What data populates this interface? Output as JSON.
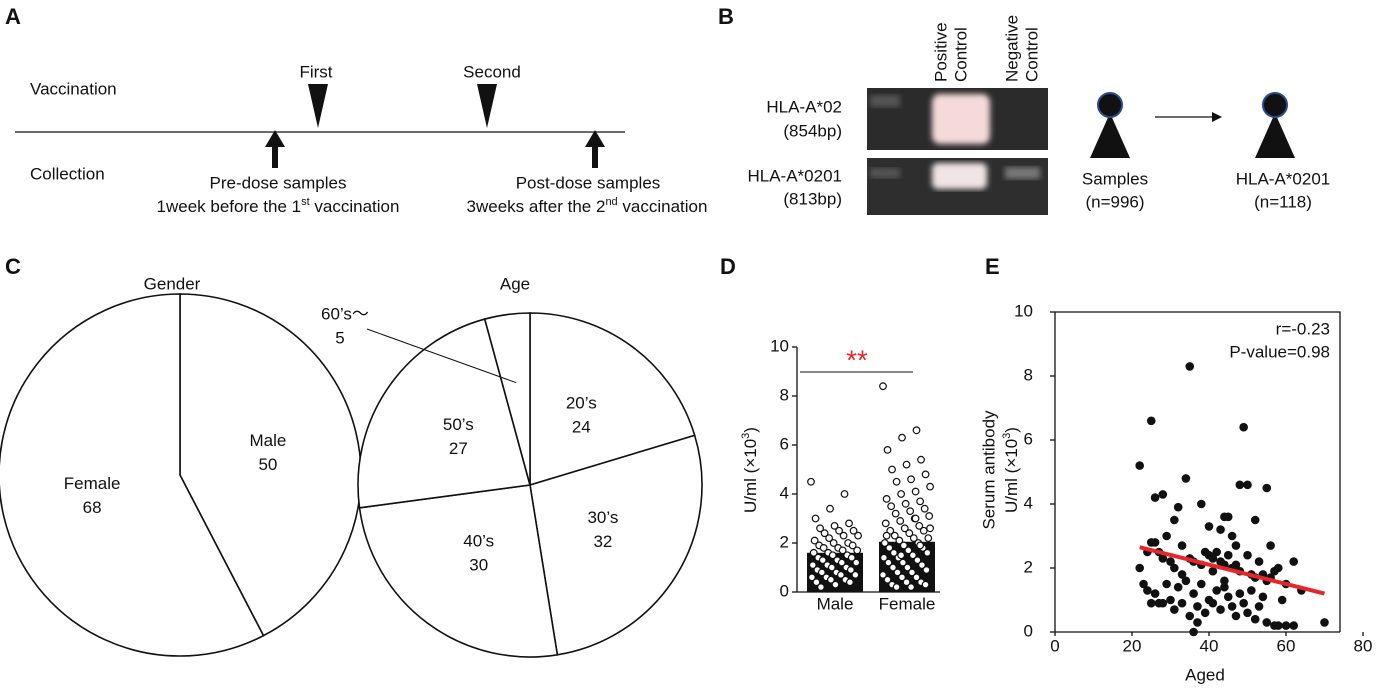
{
  "panel_a": {
    "label": "A",
    "rows": [
      "Vaccination",
      "Collection"
    ],
    "doses": [
      "First",
      "Second"
    ],
    "samples": [
      {
        "title": "Pre-dose samples",
        "note": [
          "1week before the 1",
          "st",
          " vaccination"
        ]
      },
      {
        "title": "Post-dose samples",
        "note": [
          "3weeks after the 2",
          "nd",
          " vaccination"
        ]
      }
    ]
  },
  "panel_b": {
    "label": "B",
    "lanes": [
      [
        "Positive",
        "Control"
      ],
      [
        "Negative",
        "Control"
      ]
    ],
    "genes": [
      {
        "name": "HLA-A*02",
        "size": "(854bp)"
      },
      {
        "name": "HLA-A*0201",
        "size": "(813bp)"
      }
    ],
    "groups": [
      {
        "name": "Samples",
        "n": "(n=996)"
      },
      {
        "name": "HLA-A*0201",
        "n": "(n=118)"
      }
    ]
  },
  "chart_data": [
    {
      "type": "pie",
      "panel": "C",
      "title": "Gender",
      "categories": [
        "Male",
        "Female"
      ],
      "values": [
        50,
        68
      ],
      "color": "#ffffff"
    },
    {
      "type": "pie",
      "title": "Age",
      "categories": [
        "20’s",
        "30’s",
        "40’s",
        "50’s",
        "60’s～"
      ],
      "values": [
        24,
        32,
        30,
        27,
        5
      ],
      "color": "#ffffff"
    },
    {
      "type": "bar",
      "panel": "D",
      "categories": [
        "Male",
        "Female"
      ],
      "values": [
        1.6,
        2.05
      ],
      "color": "#111111",
      "points": [
        [
          4.5,
          4.0,
          3.4,
          3.0,
          2.8,
          2.7,
          2.6,
          2.5,
          2.5,
          2.4,
          2.3,
          2.3,
          2.2,
          2.1,
          2.0,
          2.0,
          1.9,
          1.9,
          1.8,
          1.8,
          1.7,
          1.7,
          1.6,
          1.6,
          1.5,
          1.5,
          1.4,
          1.4,
          1.3,
          1.3,
          1.2,
          1.2,
          1.1,
          1.1,
          1.0,
          1.0,
          0.9,
          0.9,
          0.8,
          0.8,
          0.7,
          0.7,
          0.6,
          0.6,
          0.5,
          0.5,
          0.4,
          0.4,
          0.3,
          0.2
        ],
        [
          8.4,
          6.6,
          6.3,
          5.8,
          5.4,
          5.2,
          5.0,
          4.8,
          4.6,
          4.5,
          4.3,
          4.1,
          4.0,
          3.8,
          3.7,
          3.6,
          3.5,
          3.4,
          3.3,
          3.2,
          3.1,
          3.0,
          2.9,
          2.8,
          2.7,
          2.6,
          2.5,
          2.5,
          2.4,
          2.3,
          2.2,
          2.2,
          2.1,
          2.0,
          2.0,
          1.9,
          1.8,
          1.8,
          1.7,
          1.6,
          1.6,
          1.5,
          1.4,
          1.4,
          1.3,
          1.2,
          1.2,
          1.1,
          1.0,
          1.0,
          0.9,
          0.8,
          0.8,
          0.7,
          0.6,
          0.6,
          0.5,
          0.4,
          0.4,
          0.3,
          0.3,
          0.2,
          0.2,
          2.6,
          3.0,
          1.5,
          2.3,
          1.9
        ]
      ],
      "ylim": [
        0,
        10
      ],
      "yticks": [
        0,
        2,
        4,
        6,
        8,
        10
      ],
      "ylabel": [
        "U/ml (×10",
        "3",
        ")"
      ],
      "significance": "**",
      "significance_color": "#e8262a"
    },
    {
      "type": "scatter",
      "panel": "E",
      "color": "#111111",
      "x": [
        22,
        25,
        35,
        49,
        34,
        48,
        50,
        55,
        26,
        28,
        38,
        32,
        31,
        44,
        45,
        52,
        24,
        25,
        26,
        27,
        28,
        30,
        31,
        33,
        35,
        36,
        38,
        39,
        40,
        41,
        42,
        43,
        44,
        45,
        46,
        47,
        48,
        50,
        51,
        52,
        53,
        54,
        55,
        56,
        57,
        58,
        60,
        62,
        64,
        22,
        23,
        24,
        26,
        27,
        29,
        30,
        32,
        33,
        34,
        36,
        37,
        38,
        39,
        40,
        41,
        42,
        43,
        44,
        45,
        46,
        47,
        48,
        49,
        50,
        51,
        52,
        53,
        54,
        55,
        57,
        58,
        60,
        62,
        70,
        36,
        37,
        25,
        28,
        31,
        35,
        41,
        43,
        46,
        29,
        40,
        47,
        33,
        56,
        59,
        44
      ],
      "values": [
        5.2,
        6.6,
        8.3,
        6.4,
        4.8,
        4.6,
        4.6,
        4.5,
        4.2,
        4.3,
        4.0,
        3.9,
        3.5,
        3.6,
        3.6,
        3.5,
        2.5,
        2.8,
        2.8,
        2.5,
        2.3,
        2.2,
        2.0,
        1.8,
        2.3,
        2.2,
        2.1,
        2.5,
        2.4,
        2.3,
        2.5,
        2.2,
        2.1,
        2.4,
        2.0,
        2.1,
        1.9,
        2.4,
        1.8,
        1.7,
        2.2,
        1.8,
        1.6,
        1.7,
        1.9,
        2.0,
        1.5,
        2.2,
        1.3,
        2.0,
        1.5,
        1.3,
        1.2,
        0.9,
        1.5,
        1.0,
        1.4,
        0.9,
        1.6,
        1.2,
        0.8,
        1.5,
        0.6,
        1.0,
        0.9,
        1.3,
        0.7,
        1.4,
        1.1,
        0.8,
        0.5,
        1.2,
        0.9,
        0.6,
        1.3,
        0.4,
        0.8,
        1.1,
        0.3,
        0.2,
        0.2,
        0.2,
        0.2,
        0.3,
        0,
        0.3,
        0.9,
        0.9,
        0.7,
        0.5,
        1.9,
        3.2,
        3.0,
        3.0,
        3.3,
        2.7,
        2.7,
        2.7,
        1.0,
        1.6
      ],
      "xlim": [
        0,
        80
      ],
      "xticks": [
        0,
        20,
        40,
        60,
        80
      ],
      "ylim": [
        0,
        10
      ],
      "yticks": [
        0,
        2,
        4,
        6,
        8,
        10
      ],
      "xlabel": "Aged",
      "ylabel": [
        "Serum antibody",
        "U/ml (×10",
        "3",
        ")"
      ],
      "annotations": [
        "r=-0.23",
        "P-value=0.98"
      ],
      "fit": {
        "x": [
          22,
          70
        ],
        "values": [
          2.65,
          1.2
        ],
        "color": "#e8262a"
      }
    }
  ]
}
